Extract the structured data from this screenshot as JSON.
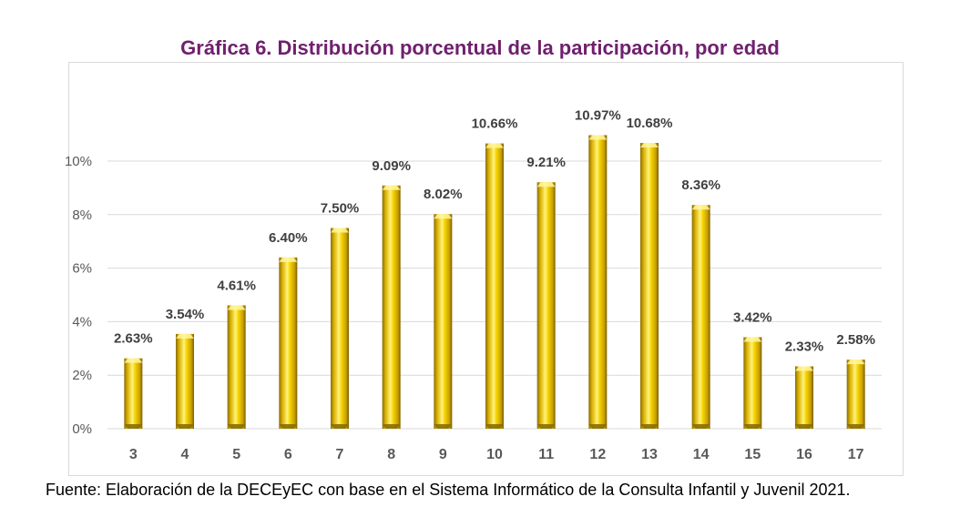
{
  "title": "Gráfica 6. Distribución porcentual de la participación, por edad",
  "source": "Fuente: Elaboración de la DECEyEC con base en el Sistema Informático de la Consulta Infantil y Juvenil 2021.",
  "colors": {
    "title": "#70206e",
    "bar": "#e6c000",
    "grid": "#d9d9d9"
  },
  "chart_data": {
    "type": "bar",
    "categories": [
      "3",
      "4",
      "5",
      "6",
      "7",
      "8",
      "9",
      "10",
      "11",
      "12",
      "13",
      "14",
      "15",
      "16",
      "17"
    ],
    "values": [
      2.63,
      3.54,
      4.61,
      6.4,
      7.5,
      9.09,
      8.02,
      10.66,
      9.21,
      10.97,
      10.68,
      8.36,
      3.42,
      2.33,
      2.58
    ],
    "data_labels": [
      "2.63%",
      "3.54%",
      "4.61%",
      "6.40%",
      "7.50%",
      "9.09%",
      "8.02%",
      "10.66%",
      "9.21%",
      "10.97%",
      "10.68%",
      "8.36%",
      "3.42%",
      "2.33%",
      "2.58%"
    ],
    "ylim": [
      0,
      12
    ],
    "yticks": [
      0,
      2,
      4,
      6,
      8,
      10
    ],
    "ytick_labels": [
      "0%",
      "2%",
      "4%",
      "6%",
      "8%",
      "10%"
    ],
    "grid": true,
    "legend": "none",
    "xlabel": "",
    "ylabel": ""
  }
}
